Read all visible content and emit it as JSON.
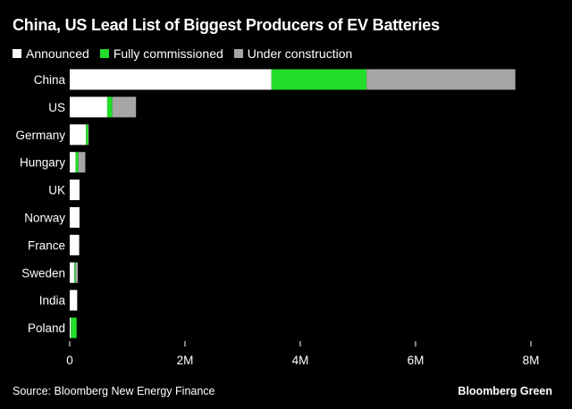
{
  "title": "China, US Lead List of Biggest Producers of EV Batteries",
  "source": "Source: Bloomberg New Energy Finance",
  "brand": "Bloomberg Green",
  "colors": {
    "announced": "#ffffff",
    "fully_commissioned": "#22dd2a",
    "under_construction": "#a6a6a6",
    "background": "#000000"
  },
  "chart_data": {
    "type": "bar",
    "orientation": "horizontal",
    "stacked": true,
    "categories": [
      "China",
      "US",
      "Germany",
      "Hungary",
      "UK",
      "Norway",
      "France",
      "Sweden",
      "India",
      "Poland"
    ],
    "series": [
      {
        "name": "Announced",
        "values": [
          3500000,
          650000,
          280000,
          100000,
          170000,
          170000,
          160000,
          80000,
          130000,
          20000
        ]
      },
      {
        "name": "Fully commissioned",
        "values": [
          1650000,
          90000,
          40000,
          50000,
          0,
          0,
          0,
          20000,
          0,
          100000
        ]
      },
      {
        "name": "Under construction",
        "values": [
          2580000,
          410000,
          10000,
          120000,
          0,
          0,
          10000,
          40000,
          0,
          0
        ]
      }
    ],
    "xlim": [
      0,
      8000000
    ],
    "x_ticks": [
      0,
      2000000,
      4000000,
      6000000,
      8000000
    ],
    "x_tick_labels": [
      "0",
      "2M",
      "4M",
      "6M",
      "8M"
    ],
    "grid": false,
    "legend_position": "top-left"
  }
}
